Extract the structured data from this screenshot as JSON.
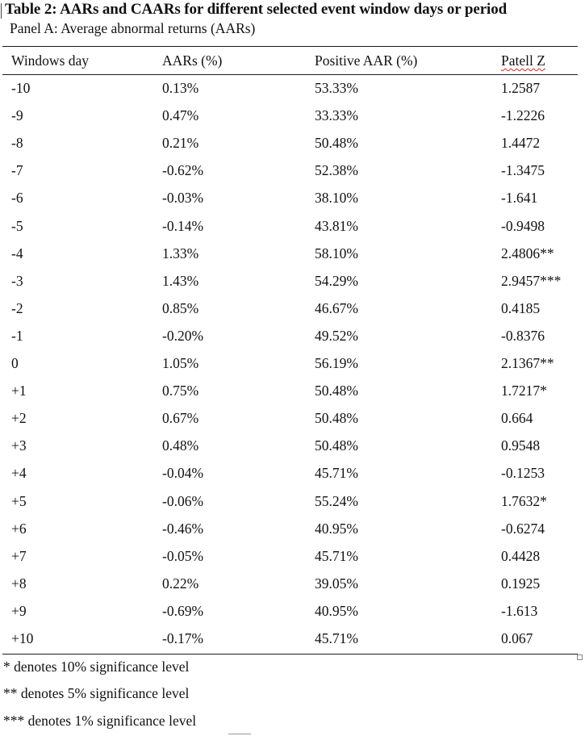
{
  "title": "Table 2: AARs and CAARs for different selected event window days or period",
  "subtitle": "Panel A: Average abnormal returns (AARs)",
  "columns": [
    "Windows day",
    "AARs (%)",
    "Positive AAR (%)",
    "Patell Z"
  ],
  "rows": [
    [
      "-10",
      "0.13%",
      "53.33%",
      "1.2587"
    ],
    [
      "-9",
      "0.47%",
      "33.33%",
      "-1.2226"
    ],
    [
      "-8",
      "0.21%",
      "50.48%",
      "1.4472"
    ],
    [
      "-7",
      "-0.62%",
      "52.38%",
      "-1.3475"
    ],
    [
      "-6",
      "-0.03%",
      "38.10%",
      "-1.641"
    ],
    [
      "-5",
      "-0.14%",
      "43.81%",
      "-0.9498"
    ],
    [
      "-4",
      "1.33%",
      "58.10%",
      "2.4806**"
    ],
    [
      "-3",
      "1.43%",
      "54.29%",
      "2.9457***"
    ],
    [
      "-2",
      "0.85%",
      "46.67%",
      "0.4185"
    ],
    [
      "-1",
      "-0.20%",
      "49.52%",
      "-0.8376"
    ],
    [
      "0",
      "1.05%",
      "56.19%",
      "2.1367**"
    ],
    [
      "+1",
      "0.75%",
      "50.48%",
      "1.7217*"
    ],
    [
      "+2",
      "0.67%",
      "50.48%",
      "0.664"
    ],
    [
      "+3",
      "0.48%",
      "50.48%",
      "0.9548"
    ],
    [
      "+4",
      "-0.04%",
      "45.71%",
      "-0.1253"
    ],
    [
      "+5",
      "-0.06%",
      "55.24%",
      "1.7632*"
    ],
    [
      "+6",
      "-0.46%",
      "40.95%",
      "-0.6274"
    ],
    [
      "+7",
      "-0.05%",
      "45.71%",
      "0.4428"
    ],
    [
      "+8",
      "0.22%",
      "39.05%",
      "0.1925"
    ],
    [
      "+9",
      "-0.69%",
      "40.95%",
      "-1.613"
    ],
    [
      "+10",
      "-0.17%",
      "45.71%",
      "0.067"
    ]
  ],
  "notes": [
    "* denotes 10% significance level",
    "** denotes 5% significance level",
    "*** denotes 1% significance level"
  ]
}
